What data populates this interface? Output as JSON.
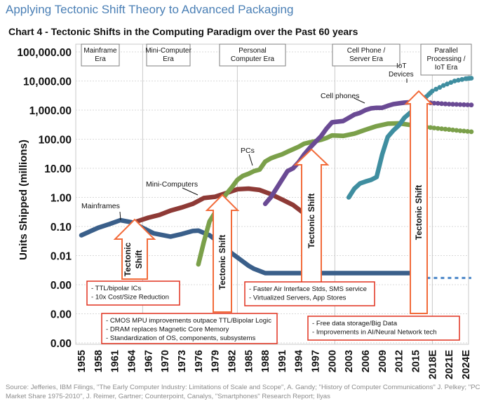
{
  "header": {
    "title": "Applying Tectonic Shift Theory to Advanced Packaging"
  },
  "source": "Source: Jefferies, IBM Filings, \"The Early Computer Industry: Limitations of Scale and Scope\", A. Gandy; \"History of Computer Communications\" J. Pelkey; \"PC Market Share 1975-2010\", J. Reimer, Gartner; Counterpoint, Canalys, \"Smartphones\" Research Report; Ilyas",
  "colors": {
    "mainframes": "#3a5f8a",
    "minicomputers": "#8e3a36",
    "pcs": "#7ba04a",
    "cellphones": "#6a4a94",
    "iot": "#3f8ea0",
    "arrow": "#f26b3a",
    "callout_border": "#e0301e"
  },
  "chart_data": {
    "type": "line",
    "title": "Chart 4 - Tectonic Shifts in the Computing Paradigm over the Past 60 years",
    "ylabel": "Units Shipped (millions)",
    "xlabel": "",
    "y_scale": "log",
    "x_ticks": [
      "1955",
      "1958",
      "1961",
      "1964",
      "1967",
      "1970",
      "1973",
      "1976",
      "1979",
      "1982",
      "1985",
      "1988",
      "1991",
      "1994",
      "1997",
      "2000",
      "2003",
      "2006",
      "2009",
      "2012",
      "2015",
      "2018E",
      "2021E",
      "2024E"
    ],
    "y_ticks": [
      "100,000.00",
      "10,000.00",
      "1,000.00",
      "100.00",
      "10.00",
      "1.00",
      "0.10",
      "0.01",
      "0.00",
      "0.00",
      "0.00"
    ],
    "grid": true,
    "eras": [
      "Mainframe Era",
      "Mini-Computer Era",
      "Personal Computer Era",
      "Cell Phone / Server Era",
      "Parallel Processing / IoT Era"
    ],
    "series": [
      {
        "name": "Mainframes",
        "color_key": "mainframes",
        "points": [
          [
            1955,
            0.05
          ],
          [
            1958,
            0.09
          ],
          [
            1960,
            0.12
          ],
          [
            1962,
            0.165
          ],
          [
            1964,
            0.14
          ],
          [
            1966,
            0.09
          ],
          [
            1968,
            0.058
          ],
          [
            1971,
            0.045
          ],
          [
            1973,
            0.055
          ],
          [
            1975,
            0.07
          ],
          [
            1976,
            0.072
          ],
          [
            1978,
            0.05
          ],
          [
            1980,
            0.026
          ],
          [
            1982,
            0.012
          ],
          [
            1985,
            0.0045
          ],
          [
            1986,
            0.0035
          ],
          [
            1988,
            0.0025
          ],
          [
            2000,
            0.0025
          ],
          [
            2010,
            0.0025
          ],
          [
            2015,
            0.0025
          ],
          [
            2016,
            0.0017
          ]
        ],
        "projection": [
          [
            2017,
            0.0017
          ],
          [
            2025,
            0.0017
          ]
        ],
        "projection_style": "dotted"
      },
      {
        "name": "Mini-Computers",
        "color_key": "minicomputers",
        "points": [
          [
            1965,
            0.15
          ],
          [
            1967,
            0.2
          ],
          [
            1969,
            0.25
          ],
          [
            1971,
            0.35
          ],
          [
            1973,
            0.45
          ],
          [
            1975,
            0.6
          ],
          [
            1977,
            0.95
          ],
          [
            1979,
            1.05
          ],
          [
            1981,
            1.4
          ],
          [
            1983,
            1.9
          ],
          [
            1985,
            2.0
          ],
          [
            1987,
            1.8
          ],
          [
            1989,
            1.3
          ],
          [
            1991,
            0.85
          ],
          [
            1993,
            0.55
          ],
          [
            1995,
            0.28
          ]
        ]
      },
      {
        "name": "PCs",
        "color_key": "pcs",
        "points": [
          [
            1976,
            0.005
          ],
          [
            1977,
            0.03
          ],
          [
            1978,
            0.15
          ],
          [
            1979,
            0.3
          ],
          [
            1980,
            0.7
          ],
          [
            1981,
            1.3
          ],
          [
            1982,
            2.2
          ],
          [
            1983,
            4.0
          ],
          [
            1984,
            5.5
          ],
          [
            1985,
            6.5
          ],
          [
            1986,
            8
          ],
          [
            1987,
            9
          ],
          [
            1988,
            17
          ],
          [
            1989,
            22
          ],
          [
            1990,
            26
          ],
          [
            1991,
            30
          ],
          [
            1992,
            37
          ],
          [
            1993,
            45
          ],
          [
            1994,
            55
          ],
          [
            1995,
            70
          ],
          [
            1996,
            78
          ],
          [
            1997,
            85
          ],
          [
            1998,
            95
          ],
          [
            1999,
            110
          ],
          [
            2000,
            135
          ],
          [
            2002,
            130
          ],
          [
            2004,
            155
          ],
          [
            2006,
            210
          ],
          [
            2008,
            280
          ],
          [
            2010,
            340
          ],
          [
            2012,
            350
          ],
          [
            2014,
            310
          ],
          [
            2016,
            280
          ]
        ],
        "projection": [
          [
            2017,
            260
          ],
          [
            2019,
            235
          ],
          [
            2021,
            215
          ],
          [
            2023,
            195
          ],
          [
            2025,
            180
          ]
        ],
        "projection_style": "dotted"
      },
      {
        "name": "Cell phones",
        "color_key": "cellphones",
        "points": [
          [
            1988,
            0.6
          ],
          [
            1989,
            1.0
          ],
          [
            1990,
            2
          ],
          [
            1991,
            4
          ],
          [
            1992,
            8
          ],
          [
            1993,
            10
          ],
          [
            1994,
            16
          ],
          [
            1995,
            30
          ],
          [
            1996,
            50
          ],
          [
            1997,
            80
          ],
          [
            1998,
            125
          ],
          [
            1999,
            230
          ],
          [
            2000,
            380
          ],
          [
            2001,
            400
          ],
          [
            2002,
            420
          ],
          [
            2003,
            540
          ],
          [
            2004,
            700
          ],
          [
            2005,
            800
          ],
          [
            2006,
            1000
          ],
          [
            2007,
            1150
          ],
          [
            2008,
            1200
          ],
          [
            2009,
            1200
          ],
          [
            2010,
            1400
          ],
          [
            2011,
            1600
          ],
          [
            2012,
            1700
          ],
          [
            2013,
            1800
          ],
          [
            2014,
            1850
          ],
          [
            2015,
            1900
          ],
          [
            2016,
            1900
          ]
        ],
        "projection": [
          [
            2017,
            1800
          ],
          [
            2019,
            1700
          ],
          [
            2021,
            1600
          ],
          [
            2023,
            1550
          ],
          [
            2025,
            1500
          ]
        ],
        "projection_style": "dotted"
      },
      {
        "name": "IoT Devices",
        "color_key": "iot",
        "points": [
          [
            2003,
            1.0
          ],
          [
            2004,
            2
          ],
          [
            2005,
            3
          ],
          [
            2006,
            3.5
          ],
          [
            2007,
            4
          ],
          [
            2008,
            5
          ],
          [
            2009,
            30
          ],
          [
            2010,
            120
          ],
          [
            2011,
            200
          ],
          [
            2012,
            300
          ],
          [
            2013,
            550
          ],
          [
            2014,
            800
          ],
          [
            2015,
            1200
          ],
          [
            2016,
            2000
          ],
          [
            2017,
            3000
          ]
        ],
        "projection": [
          [
            2018,
            4500
          ],
          [
            2020,
            7000
          ],
          [
            2022,
            10000
          ],
          [
            2024,
            12000
          ],
          [
            2025,
            12500
          ]
        ],
        "projection_style": "dotted"
      }
    ],
    "shift_labels": [
      "Tectonic Shift",
      "Tectonic Shift",
      "Tectonic Shift",
      "Tectonic Shift"
    ],
    "arrow_text_1": "Tectonic\nShift",
    "callouts": [
      [
        "- TTL/bipolar ICs",
        "- 10x Cost/Size Reduction"
      ],
      [
        "- CMOS MPU improvements outpace TTL/Bipolar Logic",
        "- DRAM replaces Magnetic Core Memory",
        "- Standardization of OS, components, subsystems"
      ],
      [
        "- Faster Air Interface Stds, SMS service",
        "- Virtualized Servers, App Stores"
      ],
      [
        "- Free data storage/Big Data",
        "- Improvements in AI/Neural Network tech"
      ]
    ]
  }
}
